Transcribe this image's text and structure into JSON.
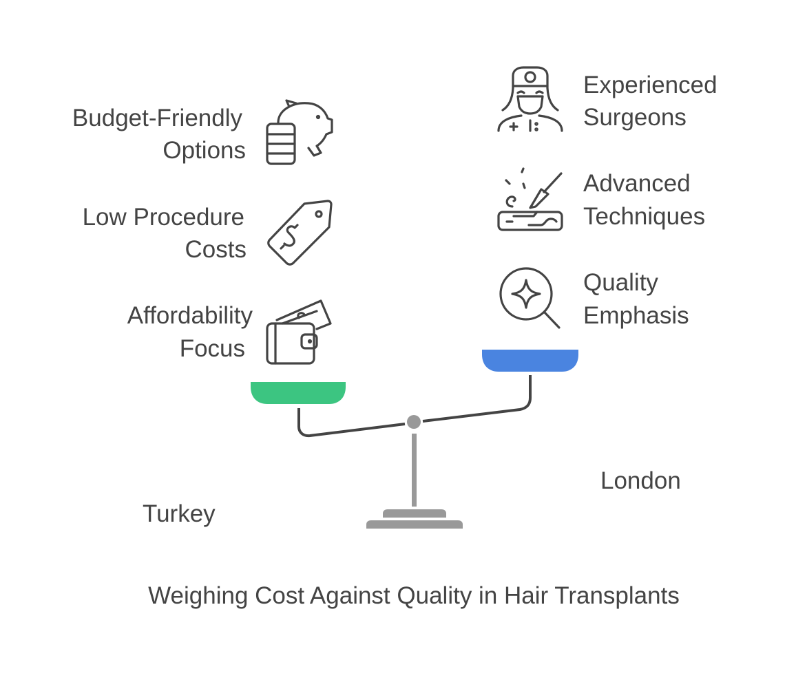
{
  "title": "Weighing Cost Against Quality in Hair Transplants",
  "left_side": {
    "label": "Turkey",
    "color": "#3cc581",
    "items": [
      {
        "line1": "Budget-Friendly",
        "line2": "Options",
        "icon": "piggy-bank-coins-icon"
      },
      {
        "line1": "Low Procedure",
        "line2": "Costs",
        "icon": "price-tag-icon"
      },
      {
        "line1": "Affordability",
        "line2": "Focus",
        "icon": "wallet-money-icon"
      }
    ]
  },
  "right_side": {
    "label": "London",
    "color": "#4a84e0",
    "items": [
      {
        "line1": "Experienced",
        "line2": "Surgeons",
        "icon": "surgeon-icon"
      },
      {
        "line1": "Advanced",
        "line2": "Techniques",
        "icon": "scalpel-skin-icon"
      },
      {
        "line1": "Quality",
        "line2": "Emphasis",
        "icon": "magnifier-sparkle-icon"
      }
    ]
  }
}
